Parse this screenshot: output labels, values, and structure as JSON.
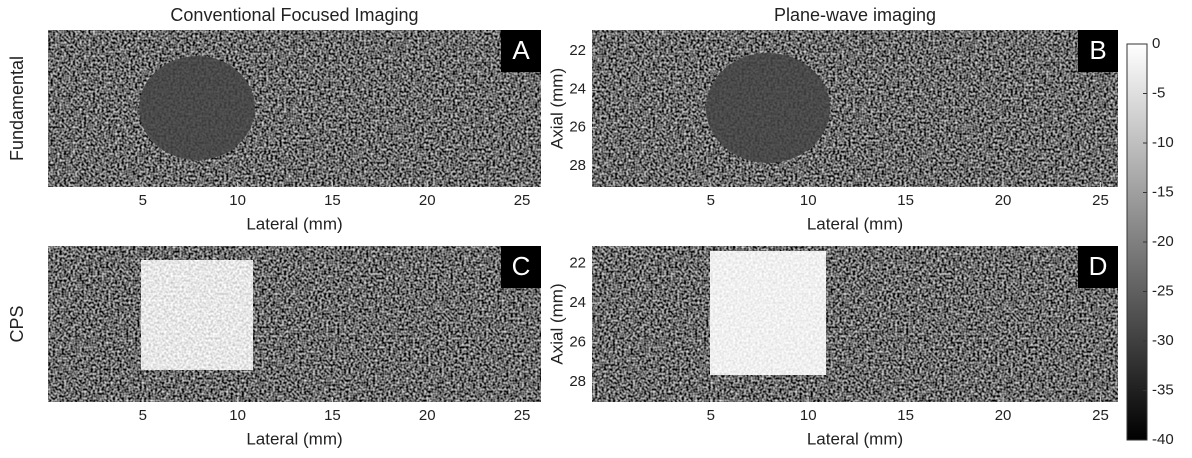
{
  "chart_data": [
    {
      "type": "heatmap",
      "title": "Conventional Focused Imaging",
      "row_label": "Fundamental",
      "panel": "A",
      "xlabel": "Lateral (mm)",
      "xlim": [
        0,
        26
      ],
      "xticks": [
        5,
        10,
        15,
        20,
        25
      ]
    },
    {
      "type": "heatmap",
      "title": "Plane-wave imaging",
      "panel": "B",
      "xlabel": "Lateral (mm)",
      "ylabel": "Axial (mm)",
      "xlim": [
        -1.1,
        25.9
      ],
      "xticks": [
        5,
        10,
        15,
        20,
        25
      ],
      "ylim": [
        29.1,
        20.9
      ],
      "yticks": [
        22,
        24,
        26,
        28
      ]
    },
    {
      "type": "heatmap",
      "row_label": "CPS",
      "panel": "C",
      "xlabel": "Lateral (mm)",
      "xlim": [
        0,
        26
      ],
      "xticks": [
        5,
        10,
        15,
        20,
        25
      ]
    },
    {
      "type": "heatmap",
      "panel": "D",
      "xlabel": "Lateral (mm)",
      "ylabel": "Axial (mm)",
      "xlim": [
        -1.1,
        25.9
      ],
      "xticks": [
        5,
        10,
        15,
        20,
        25
      ],
      "ylim": [
        29.0,
        21.1
      ],
      "yticks": [
        22,
        24,
        26,
        28
      ]
    },
    {
      "type": "colorbar",
      "ylim": [
        -40,
        0
      ],
      "yticks": [
        0,
        -5,
        -10,
        -15,
        -20,
        -25,
        -30,
        -35,
        -40
      ]
    }
  ]
}
